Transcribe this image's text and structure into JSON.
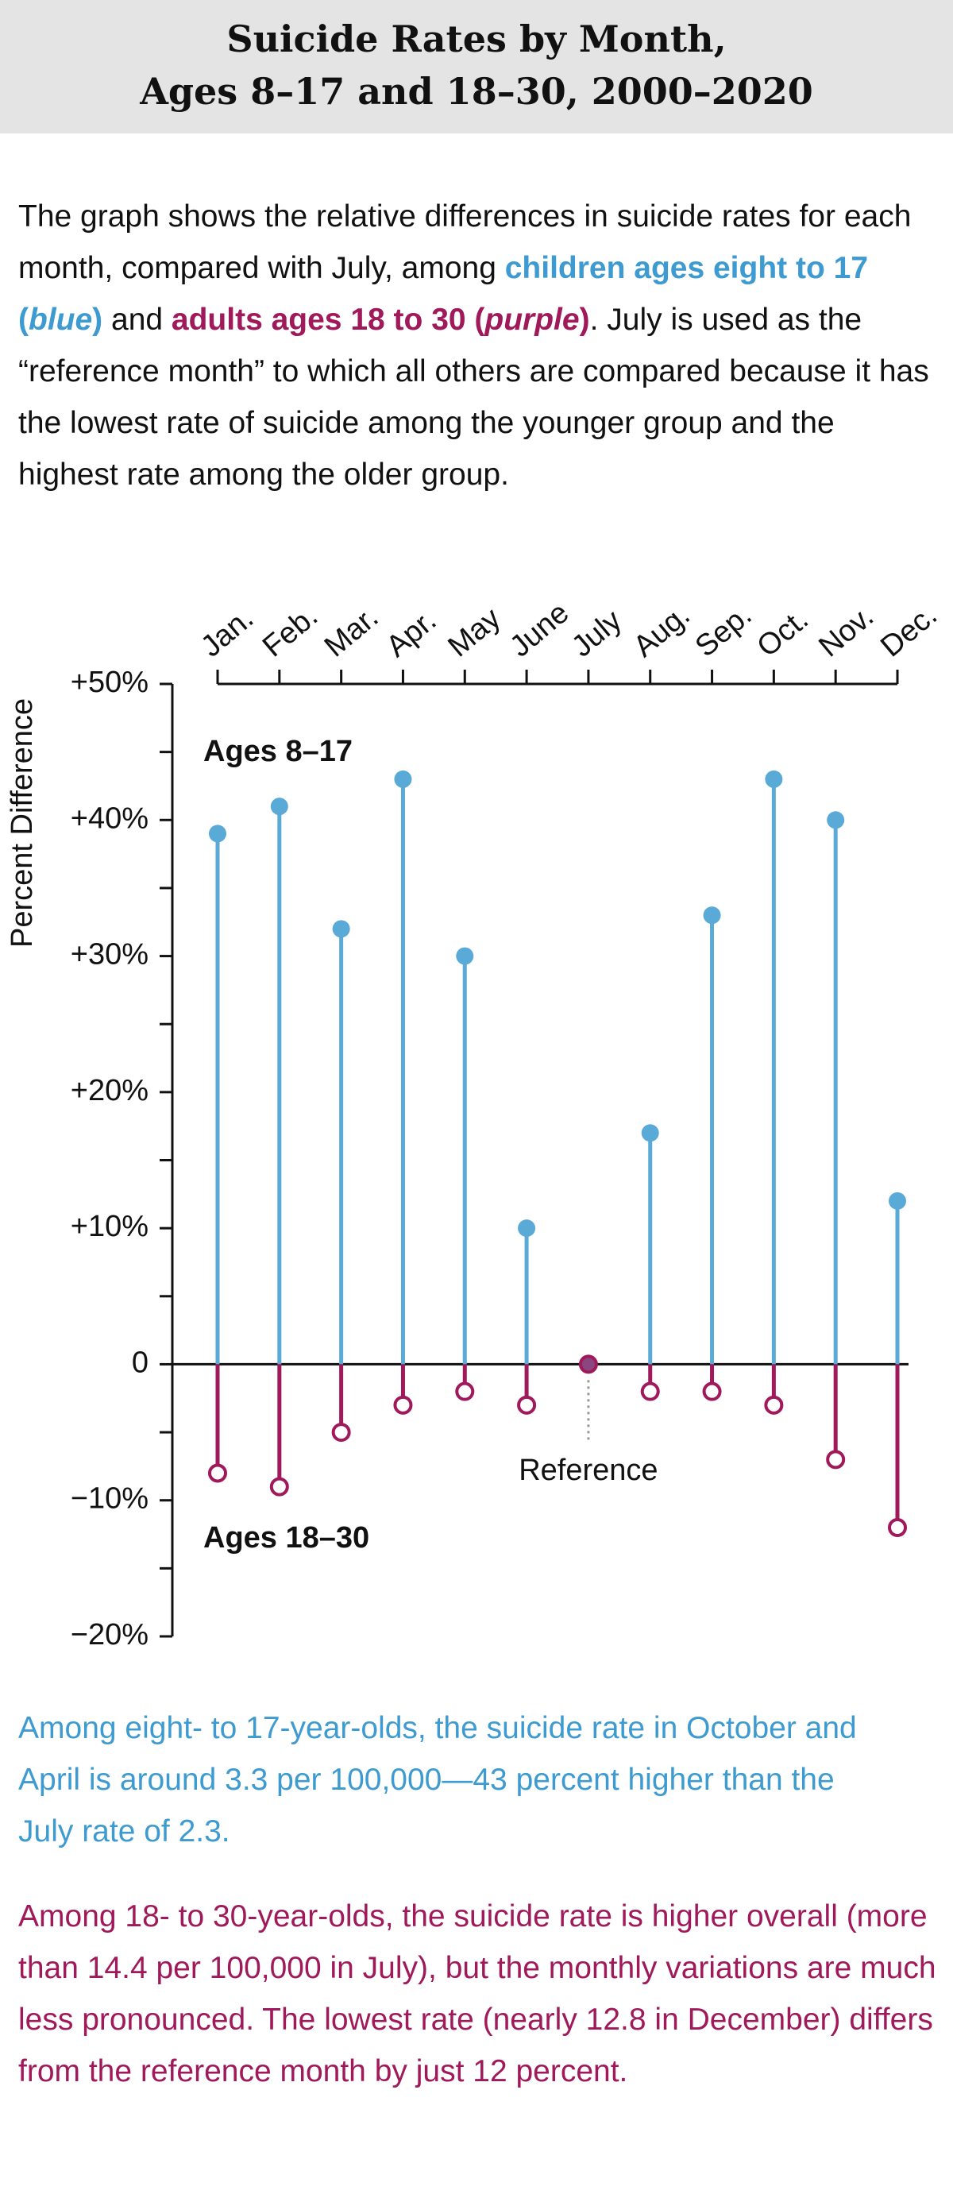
{
  "header": {
    "title_lines": [
      "Suicide Rates by Month,",
      "Ages 8–17 and 18–30, 2000–2020"
    ]
  },
  "intro": [
    "The graph shows the relative differences in suicide rates for each month, compared with July, among ",
    "children ages eight to 17 (",
    "blue",
    ")",
    " and ",
    "adults ages 18 to 30 (",
    "purple",
    ")",
    ". July is used as the “reference month” to which all others are compared because it has the lowest rate of suicide among the younger group and the highest rate among the older group."
  ],
  "chart_data": {
    "type": "lollipop",
    "y_label": "Percent Difference",
    "categories": [
      "Jan.",
      "Feb.",
      "Mar.",
      "Apr.",
      "May",
      "June",
      "July",
      "Aug.",
      "Sep.",
      "Oct.",
      "Nov.",
      "Dec."
    ],
    "series": [
      {
        "name": "Ages 8–17",
        "color": "#5aaad8",
        "values": [
          39,
          41,
          32,
          43,
          30,
          10,
          0,
          17,
          33,
          43,
          40,
          12
        ]
      },
      {
        "name": "Ages 18–30",
        "color": "#a0195a",
        "values": [
          -8,
          -9,
          -5,
          -3,
          -2,
          -3,
          0,
          -2,
          -2,
          -3,
          -7,
          -12
        ]
      }
    ],
    "ylim": [
      -20,
      50
    ],
    "yticks": [
      {
        "value": -20,
        "label": "−20%"
      },
      {
        "value": -10,
        "label": "−10%"
      },
      0,
      {
        "value": 10,
        "label": "+10%"
      },
      {
        "value": 20,
        "label": "+20%"
      },
      {
        "value": 30,
        "label": "+30%"
      },
      {
        "value": 40,
        "label": "+40%"
      },
      {
        "value": 50,
        "label": "+50%"
      }
    ],
    "yticks_minor": [
      -15,
      -5,
      5,
      15,
      25,
      35,
      45
    ],
    "annotation": "Reference"
  },
  "notes": [
    "Among eight- to 17-year-olds, the suicide rate in October and April is around 3.3 per 100,000—43 percent higher than the July rate of 2.3.",
    "Among 18- to 30-year-olds, the suicide rate is higher overall (more than 14.4 per 100,000 in July), but the monthly variations are much less pronounced. The lowest rate (nearly 12.8 in December) differs from the reference month by just 12 percent."
  ]
}
